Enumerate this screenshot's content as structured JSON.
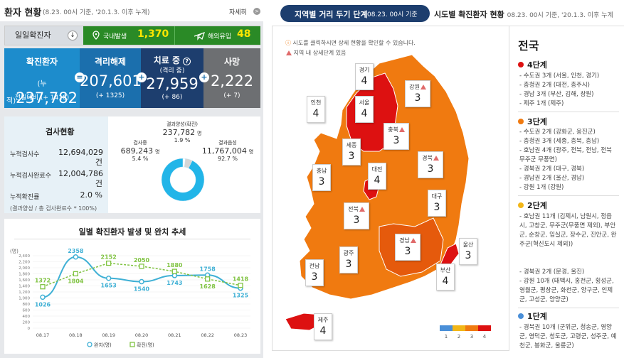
{
  "header": {
    "title": "환자 현황",
    "subtitle": "(8.23. 00시 기준, '20.1.3. 이후 누계)",
    "more": "자세히",
    "more_icon": ">"
  },
  "daily": {
    "label": "일일확진자",
    "arrow": "↓",
    "domestic_label": "국내발생",
    "domestic": "1,370",
    "imported_label": "해외유입",
    "imported": "48"
  },
  "cards": [
    {
      "title": "확진환자",
      "prefix": "(누적)",
      "value": "237,782",
      "sub": "전일대비 (+ 1418)"
    },
    {
      "title": "격리해제",
      "value": "207,601",
      "sub": "(+ 1325)"
    },
    {
      "title": "치료 중",
      "title2": "(격리 중)",
      "help": "?",
      "value": "27,959",
      "sub": "(+ 86)"
    },
    {
      "title": "사망",
      "value": "2,222",
      "sub": "(+ 7)"
    }
  ],
  "plus": "+",
  "equals": "=",
  "tests": {
    "title": "검사현황",
    "rows": [
      {
        "label": "누적검사수",
        "value": "12,694,029",
        "unit": "건"
      },
      {
        "label": "누적검사완료수",
        "value": "12,004,786",
        "unit": "건"
      },
      {
        "label": "누적확진률",
        "value": "2.0 %",
        "unit": ""
      }
    ],
    "footnote": "(결과양성 / 총 검사완료수 * 100%)",
    "donut": {
      "positive_label": "결과양성(확진)",
      "positive": "237,782",
      "positive_unit": "명",
      "positive_pct": "1.9 %",
      "testing_label": "검사중",
      "testing": "689,243",
      "testing_unit": "명",
      "testing_pct": "5.4 %",
      "negative_label": "결과음성",
      "negative": "11,767,004",
      "negative_unit": "명",
      "negative_pct": "92.7 %",
      "fractions": [
        0.019,
        0.054,
        0.927
      ],
      "colors": [
        "#ffffff",
        "#d6d6d6",
        "#22b5e8"
      ]
    }
  },
  "chart_data": {
    "type": "line",
    "title": "일별 확진환자 발생 및 완치 추세",
    "unit_label": "(명)",
    "categories": [
      "08.17",
      "08.18",
      "08.19",
      "08.20",
      "08.21",
      "08.22",
      "08.23"
    ],
    "series": [
      {
        "name": "완치(명)",
        "values": [
          1026,
          2358,
          1653,
          1540,
          1743,
          1758,
          1325
        ],
        "color": "#3fb0d5"
      },
      {
        "name": "확진(명)",
        "values": [
          1372,
          1804,
          2152,
          2050,
          1880,
          1628,
          1418
        ],
        "color": "#80c342"
      }
    ],
    "yticks": [
      "2,400",
      "2,200",
      "2,000",
      "1,800",
      "1,600",
      "1,400",
      "1,200",
      "1,000",
      "800",
      "600",
      "400",
      "200",
      "0"
    ],
    "ylim": [
      0,
      2400
    ],
    "grid": true,
    "legend_position": "bottom"
  },
  "tabs": {
    "active": "지역별 거리 두기 단계",
    "active_date": "08.23. 00시 기준",
    "other": "시도별 확진환자 현황",
    "other_date": "08.23. 00시 기준, '20.1.3. 이후 누계"
  },
  "map_notes": [
    "시도를 클릭하시면 상세 현황을 확인할 수 있습니다.",
    "지역 내 상세단계 있음"
  ],
  "regions": [
    {
      "name": "경기",
      "value": "4",
      "tri": false
    },
    {
      "name": "인천",
      "value": "4",
      "tri": false
    },
    {
      "name": "서울",
      "value": "4",
      "tri": false
    },
    {
      "name": "강원",
      "value": "3",
      "tri": true
    },
    {
      "name": "충북",
      "value": "3",
      "tri": true
    },
    {
      "name": "세종",
      "value": "3",
      "tri": false
    },
    {
      "name": "대전",
      "value": "4",
      "tri": false
    },
    {
      "name": "충남",
      "value": "3",
      "tri": false
    },
    {
      "name": "경북",
      "value": "3",
      "tri": true
    },
    {
      "name": "대구",
      "value": "3",
      "tri": false
    },
    {
      "name": "전북",
      "value": "3",
      "tri": true
    },
    {
      "name": "광주",
      "value": "3",
      "tri": false
    },
    {
      "name": "경남",
      "value": "3",
      "tri": true
    },
    {
      "name": "울산",
      "value": "3",
      "tri": false
    },
    {
      "name": "전남",
      "value": "3",
      "tri": false
    },
    {
      "name": "부산",
      "value": "4",
      "tri": false
    },
    {
      "name": "제주",
      "value": "4",
      "tri": false
    }
  ],
  "legend": {
    "levels": [
      "1",
      "2",
      "3",
      "4"
    ],
    "colors": [
      "#4a8fd8",
      "#f2b617",
      "#f07a10",
      "#dd1111"
    ]
  },
  "side": {
    "title": "전국",
    "levels": [
      {
        "label": "4단계",
        "color": "#dd1111",
        "items": [
          "- 수도권 3개 (서울, 인천, 경기)",
          "- 충청권 2개 (대전, 충주시)",
          "- 경남 3개 (부산, 김해, 창원)",
          "- 제주 1개 (제주)"
        ]
      },
      {
        "label": "3단계",
        "color": "#f07a10",
        "items": [
          "- 수도권 2개 (강화군, 옹진군)",
          "- 충청권 3개 (세종, 충북, 충남)",
          "- 호남권 4개 (광주, 전북, 전남, 전북 무주군 무풍면)",
          "- 경북권 2개 (대구, 경북)",
          "- 경남권 2개 (울산, 경남)",
          "- 강원 1개 (강원)"
        ]
      },
      {
        "label": "2단계",
        "color": "#f2b617",
        "items": [
          "- 호남권 11개 (김제시, 남원시, 정읍시, 고창군, 무주군(무풍면 제외), 부안군, 순창군, 임실군, 장수군, 진안군, 완주군(혁신도시 제외))",
          "- 경북권 2개 (문경, 울진)",
          "- 강원 10개 (태백시, 홍천군, 횡성군, 영월군, 평창군, 화천군, 양구군, 인제군, 고성군, 양양군)"
        ]
      },
      {
        "label": "1단계",
        "color": "#4a8fd8",
        "items": [
          "- 경북권 10개 (군위군, 청송군, 영양군, 영덕군, 청도군, 고령군, 성주군, 예천군, 봉화군, 울릉군)"
        ]
      }
    ]
  }
}
